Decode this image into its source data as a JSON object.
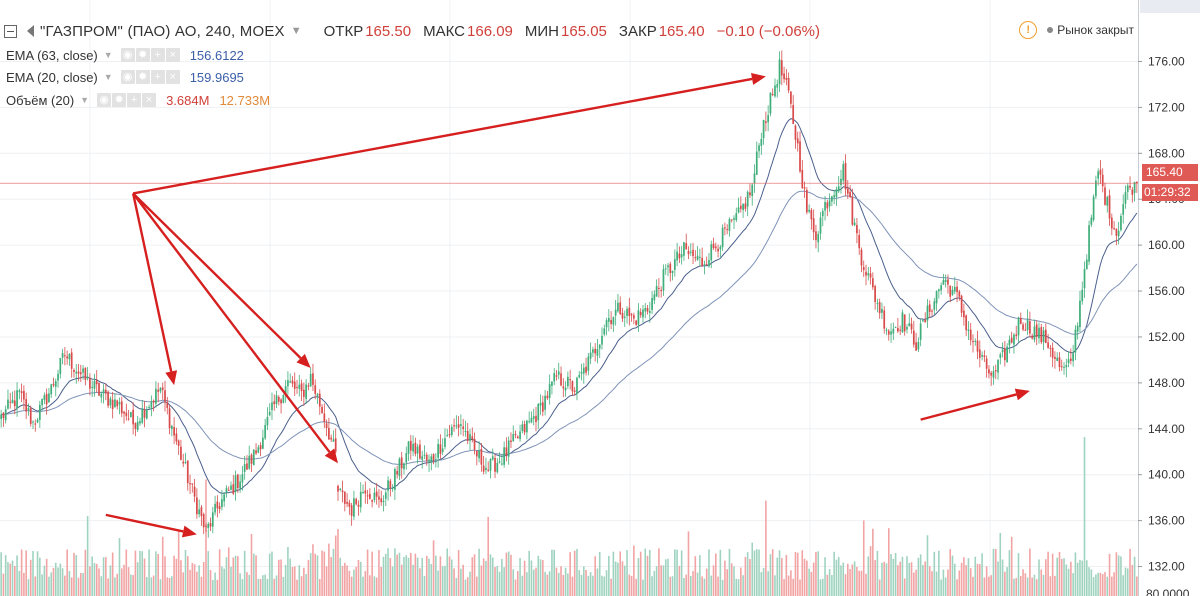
{
  "header": {
    "symbol": "\"ГАЗПРОМ\" (ПАО) АО, 240, MOEX",
    "open_label": "ОТКР",
    "open_value": "165.50",
    "high_label": "МАКС",
    "high_value": "166.09",
    "low_label": "МИН",
    "low_value": "165.05",
    "close_label": "ЗАКР",
    "close_value": "165.40",
    "change": "−0.10 (−0.06%)"
  },
  "status": {
    "text": "Рынок закрыт",
    "warning_glyph": "!"
  },
  "indicators": [
    {
      "name": "EMA (63, close)",
      "value": "156.6122"
    },
    {
      "name": "EMA (20, close)",
      "value": "159.9695"
    },
    {
      "name": "Объём (20)",
      "value": "3.684M",
      "value2": "12.733M"
    }
  ],
  "price_label": {
    "value": "165.40",
    "countdown": "01:29:32"
  },
  "colors": {
    "up": "#3fae7a",
    "down": "#d94b4b",
    "vol_up": "#9fd3c0",
    "vol_down": "#f2a3a3",
    "ema_fast": "#4a5f8c",
    "ema_slow": "#7f93b8",
    "arrow": "#d61f1f",
    "price_line": "#e06060"
  },
  "chart_data": {
    "type": "candlestick",
    "y_ticks": [
      "176.00",
      "172.00",
      "168.00",
      "164.00",
      "160.00",
      "156.00",
      "152.00",
      "148.00",
      "144.00",
      "140.00",
      "136.00",
      "132.00"
    ],
    "ylim": [
      131,
      177
    ],
    "volume_axis_label": "80.0000",
    "last_price": 165.4,
    "price_path_anchors": [
      [
        0,
        145
      ],
      [
        8,
        147
      ],
      [
        14,
        144.5
      ],
      [
        22,
        147.5
      ],
      [
        28,
        150.5
      ],
      [
        36,
        148.5
      ],
      [
        44,
        147
      ],
      [
        52,
        146
      ],
      [
        58,
        144.5
      ],
      [
        64,
        146
      ],
      [
        70,
        147.5
      ],
      [
        76,
        143.5
      ],
      [
        84,
        138.5
      ],
      [
        90,
        135
      ],
      [
        96,
        137.5
      ],
      [
        104,
        139.5
      ],
      [
        112,
        142
      ],
      [
        120,
        146
      ],
      [
        126,
        148
      ],
      [
        132,
        147
      ],
      [
        136,
        148.5
      ],
      [
        142,
        145
      ],
      [
        148,
        141
      ],
      [
        148,
        138.5
      ],
      [
        154,
        137
      ],
      [
        160,
        139
      ],
      [
        166,
        137.5
      ],
      [
        172,
        139.5
      ],
      [
        180,
        142.5
      ],
      [
        188,
        141
      ],
      [
        196,
        143.5
      ],
      [
        202,
        144.5
      ],
      [
        208,
        142
      ],
      [
        214,
        140.5
      ],
      [
        220,
        141.5
      ],
      [
        228,
        143.5
      ],
      [
        236,
        145.5
      ],
      [
        244,
        148.5
      ],
      [
        252,
        147.5
      ],
      [
        260,
        150.5
      ],
      [
        266,
        153.5
      ],
      [
        272,
        154.5
      ],
      [
        278,
        153.5
      ],
      [
        284,
        154.5
      ],
      [
        292,
        157.5
      ],
      [
        300,
        159.5
      ],
      [
        308,
        158.5
      ],
      [
        316,
        160.5
      ],
      [
        324,
        162.5
      ],
      [
        330,
        165
      ],
      [
        334,
        170
      ],
      [
        338,
        172.5
      ],
      [
        342,
        175.5
      ],
      [
        346,
        173
      ],
      [
        350,
        168.5
      ],
      [
        354,
        163
      ],
      [
        358,
        161
      ],
      [
        362,
        163.5
      ],
      [
        366,
        165
      ],
      [
        370,
        166.5
      ],
      [
        374,
        162.5
      ],
      [
        378,
        159
      ],
      [
        384,
        155.5
      ],
      [
        390,
        152.5
      ],
      [
        396,
        153.5
      ],
      [
        402,
        151.5
      ],
      [
        408,
        154.5
      ],
      [
        414,
        157
      ],
      [
        420,
        155.5
      ],
      [
        426,
        152
      ],
      [
        432,
        149.5
      ],
      [
        436,
        148.5
      ],
      [
        442,
        151
      ],
      [
        448,
        153.5
      ],
      [
        454,
        152.5
      ],
      [
        460,
        151.5
      ],
      [
        466,
        149
      ],
      [
        470,
        149.5
      ],
      [
        474,
        155
      ],
      [
        478,
        161
      ],
      [
        482,
        166.5
      ],
      [
        486,
        163.5
      ],
      [
        490,
        161
      ],
      [
        494,
        164.5
      ],
      [
        498,
        165.4
      ]
    ],
    "volume_spikes": [
      [
        90,
        22
      ],
      [
        170,
        9
      ],
      [
        336,
        18
      ],
      [
        476,
        30
      ]
    ],
    "annotations": [
      {
        "type": "arrow",
        "from": [
          58,
          164.5
        ],
        "to": [
          76,
          147.8
        ]
      },
      {
        "type": "arrow",
        "from": [
          58,
          164.5
        ],
        "to": [
          136,
          149.3
        ]
      },
      {
        "type": "arrow",
        "from": [
          58,
          164.5
        ],
        "to": [
          148,
          141
        ]
      },
      {
        "type": "arrow",
        "from": [
          58,
          164.5
        ],
        "to": [
          336,
          174.7
        ]
      },
      {
        "type": "arrow",
        "from": [
          46,
          136.5
        ],
        "to": [
          86,
          134.8
        ]
      },
      {
        "type": "arrow",
        "from": [
          404,
          144.8
        ],
        "to": [
          452,
          147.3
        ]
      }
    ]
  }
}
